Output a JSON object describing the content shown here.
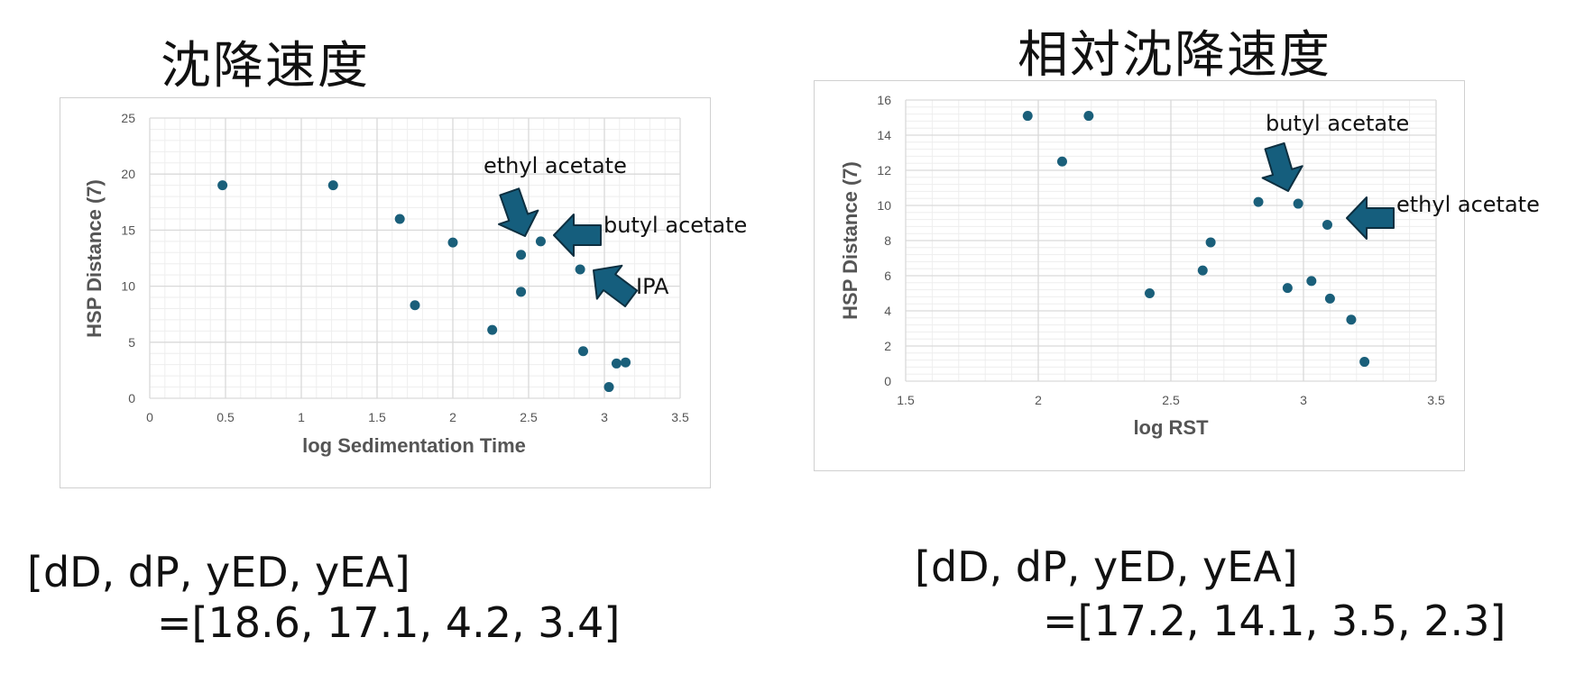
{
  "titles": {
    "left": "沈降速度",
    "right": "相対沈降速度"
  },
  "params": {
    "left_line1": "[dD, dP, yED, yEA]",
    "left_line2": "=[18.6, 17.1, 4.2, 3.4]",
    "right_line1": "[dD, dP, yED, yEA]",
    "right_line2": "=[17.2, 14.1, 3.5, 2.3]"
  },
  "colors": {
    "point": "#1a5f7a",
    "arrow": "#155e7d",
    "arrow_edge": "#0d2f40",
    "grid_major": "#d9d9d9",
    "grid_minor": "#eeeeee"
  },
  "chart_data": [
    {
      "type": "scatter",
      "title": "",
      "xlabel": "log Sedimentation Time",
      "ylabel": "HSP Distance (7)",
      "xlim": [
        0,
        3.5
      ],
      "ylim": [
        0,
        25
      ],
      "xticks": [
        "0",
        "0.5",
        "1",
        "1.5",
        "2",
        "2.5",
        "3",
        "3.5"
      ],
      "yticks": [
        "0",
        "5",
        "10",
        "15",
        "20",
        "25"
      ],
      "grid": true,
      "x": [
        0.48,
        1.21,
        1.65,
        1.75,
        2.0,
        2.26,
        2.45,
        2.45,
        2.58,
        2.84,
        2.86,
        3.03,
        3.08,
        3.14
      ],
      "y": [
        19.0,
        19.0,
        16.0,
        8.3,
        13.9,
        6.1,
        12.8,
        9.5,
        14.0,
        11.5,
        4.2,
        1.0,
        3.1,
        3.2
      ],
      "annotations": [
        {
          "text": "ethyl acetate",
          "x": 2.45,
          "y": 15.5
        },
        {
          "text": "butyl acetate",
          "x": 2.68,
          "y": 14.0
        },
        {
          "text": "IPA",
          "x": 2.95,
          "y": 10.5
        }
      ]
    },
    {
      "type": "scatter",
      "title": "",
      "xlabel": "log RST",
      "ylabel": "HSP Distance (7)",
      "xlim": [
        1.5,
        3.5
      ],
      "ylim": [
        0,
        16
      ],
      "xticks": [
        "1.5",
        "2",
        "2.5",
        "3",
        "3.5"
      ],
      "yticks": [
        "0",
        "2",
        "4",
        "6",
        "8",
        "10",
        "12",
        "14",
        "16"
      ],
      "grid": true,
      "x": [
        1.96,
        2.09,
        2.19,
        2.42,
        2.62,
        2.65,
        2.83,
        2.94,
        2.98,
        3.03,
        3.09,
        3.1,
        3.18,
        3.23
      ],
      "y": [
        15.1,
        12.5,
        15.1,
        5.0,
        6.3,
        7.9,
        10.2,
        5.3,
        10.1,
        5.7,
        8.9,
        4.7,
        3.5,
        1.1
      ],
      "annotations": [
        {
          "text": "butyl acetate",
          "x": 2.98,
          "y": 11.2
        },
        {
          "text": "ethyl acetate",
          "x": 3.14,
          "y": 9.4
        }
      ]
    }
  ]
}
